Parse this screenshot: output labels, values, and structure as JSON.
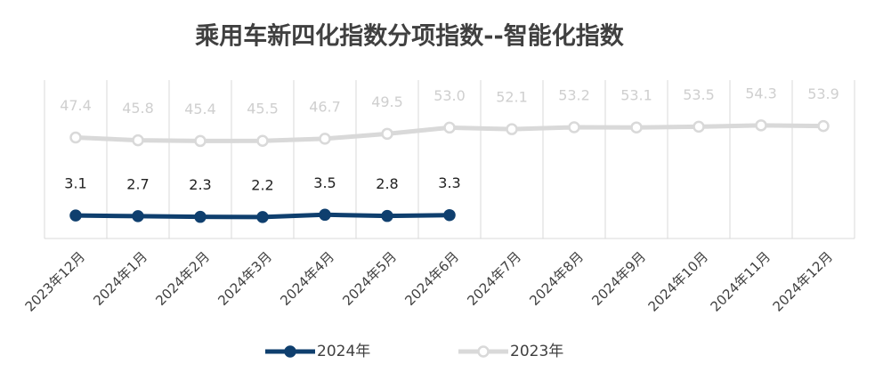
{
  "chart_data": {
    "type": "line",
    "title": "乘用车新四化指数分项指数--智能化指数",
    "categories": [
      "2023年12月",
      "2024年1月",
      "2024年2月",
      "2024年3月",
      "2024年4月",
      "2024年5月",
      "2024年6月",
      "2024年7月",
      "2024年8月",
      "2024年9月",
      "2024年10月",
      "2024年11月",
      "2024年12月"
    ],
    "series": [
      {
        "name": "2024年",
        "color": "#0f3f6e",
        "label_color": "#222222",
        "values": [
          3.1,
          2.7,
          2.3,
          2.2,
          3.5,
          2.8,
          3.3,
          null,
          null,
          null,
          null,
          null,
          null
        ],
        "value_labels": [
          "3.1",
          "2.7",
          "2.3",
          "2.2",
          "3.5",
          "2.8",
          "3.3",
          null,
          null,
          null,
          null,
          null,
          null
        ]
      },
      {
        "name": "2023年",
        "color": "#d9d9d9",
        "label_color": "#cfcfcf",
        "values": [
          47.4,
          45.8,
          45.4,
          45.5,
          46.7,
          49.5,
          53.0,
          52.1,
          53.2,
          53.1,
          53.5,
          54.3,
          53.9
        ],
        "value_labels": [
          "47.4",
          "45.8",
          "45.4",
          "45.5",
          "46.7",
          "49.5",
          "53.0",
          "52.1",
          "53.2",
          "53.1",
          "53.5",
          "54.3",
          "53.9"
        ]
      }
    ],
    "ylim": [
      -10,
      80
    ],
    "legend": "bottom"
  }
}
